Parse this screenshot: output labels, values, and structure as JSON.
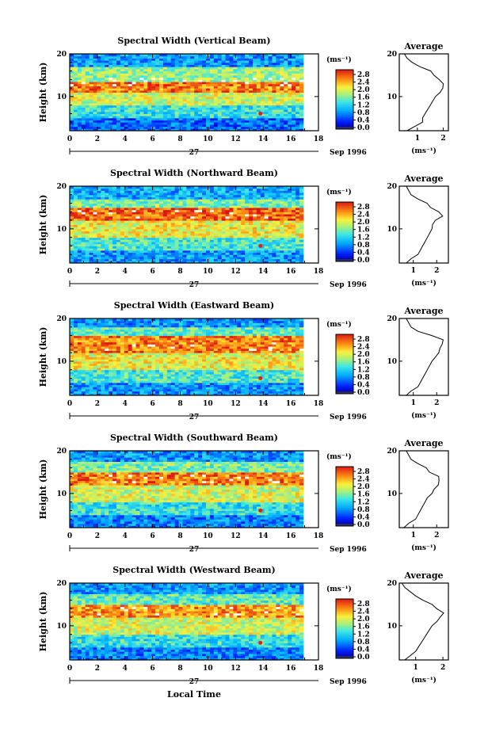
{
  "figure": {
    "xlabel": "Local Time",
    "date_day": "27",
    "date_label": "Sep 1996"
  },
  "chart_data": [
    {
      "type": "heatmap",
      "title": "Spectral Width (Vertical Beam)",
      "ylabel": "Height (km)",
      "xlim": [
        0,
        18
      ],
      "ylim": [
        2,
        20
      ],
      "xticks": [
        0,
        2,
        4,
        6,
        8,
        10,
        12,
        14,
        16,
        18
      ],
      "yticks": [
        10,
        20
      ],
      "data_extent_hours": [
        0,
        16.9
      ],
      "colorbar": {
        "unit": "(ms⁻¹)",
        "ticks": [
          "0.0",
          "0.4",
          "0.8",
          "1.2",
          "1.6",
          "2.0",
          "2.4",
          "2.8"
        ],
        "range": [
          0,
          2.8
        ]
      },
      "layers": [
        {
          "from": 2,
          "to": 5,
          "value": 0.6
        },
        {
          "from": 5,
          "to": 8,
          "value": 1.2
        },
        {
          "from": 8,
          "to": 11,
          "value": 1.8
        },
        {
          "from": 11,
          "to": 13.5,
          "value": 2.4
        },
        {
          "from": 13.5,
          "to": 17,
          "value": 1.6
        },
        {
          "from": 17,
          "to": 20,
          "value": 0.8
        }
      ],
      "average_profile": {
        "title": "Average",
        "xlabel": "(ms⁻¹)",
        "xticks": [
          1,
          2
        ],
        "xlim": [
          0.3,
          2.2
        ],
        "heights": [
          2,
          3,
          4,
          5,
          6,
          7,
          8,
          9,
          10,
          11,
          12,
          13,
          14,
          15,
          16,
          17,
          18,
          19,
          20
        ],
        "values": [
          0.6,
          0.9,
          1.2,
          1.2,
          1.3,
          1.4,
          1.5,
          1.6,
          1.7,
          1.8,
          2.0,
          2.0,
          1.9,
          1.7,
          1.4,
          1.1,
          0.8,
          0.6,
          0.5
        ]
      }
    },
    {
      "type": "heatmap",
      "title": "Spectral Width (Northward Beam)",
      "ylabel": "Height (km)",
      "xlim": [
        0,
        18
      ],
      "ylim": [
        2,
        20
      ],
      "xticks": [
        0,
        2,
        4,
        6,
        8,
        10,
        12,
        14,
        16,
        18
      ],
      "yticks": [
        10,
        20
      ],
      "data_extent_hours": [
        0,
        16.9
      ],
      "colorbar": {
        "unit": "(ms⁻¹)",
        "ticks": [
          "0.0",
          "0.4",
          "0.8",
          "1.2",
          "1.6",
          "2.0",
          "2.4",
          "2.8"
        ],
        "range": [
          0,
          2.8
        ]
      },
      "layers": [
        {
          "from": 2,
          "to": 5,
          "value": 0.8
        },
        {
          "from": 5,
          "to": 8,
          "value": 1.3
        },
        {
          "from": 8,
          "to": 12,
          "value": 1.9
        },
        {
          "from": 12,
          "to": 15,
          "value": 2.5
        },
        {
          "from": 15,
          "to": 17,
          "value": 1.5
        },
        {
          "from": 17,
          "to": 20,
          "value": 0.9
        }
      ],
      "average_profile": {
        "title": "Average",
        "xlabel": "(ms⁻¹)",
        "xticks": [
          1,
          2
        ],
        "xlim": [
          0.4,
          2.5
        ],
        "heights": [
          2,
          3,
          4,
          5,
          6,
          7,
          8,
          9,
          10,
          11,
          12,
          13,
          14,
          15,
          16,
          17,
          18,
          19,
          20
        ],
        "values": [
          0.7,
          0.9,
          1.2,
          1.3,
          1.4,
          1.5,
          1.6,
          1.7,
          1.8,
          1.9,
          2.0,
          2.3,
          2.2,
          1.8,
          1.6,
          1.2,
          0.9,
          0.8,
          0.7
        ]
      }
    },
    {
      "type": "heatmap",
      "title": "Spectral Width (Eastward Beam)",
      "ylabel": "Height (km)",
      "xlim": [
        0,
        18
      ],
      "ylim": [
        2,
        20
      ],
      "xticks": [
        0,
        2,
        4,
        6,
        8,
        10,
        12,
        14,
        16,
        18
      ],
      "yticks": [
        10,
        20
      ],
      "data_extent_hours": [
        0,
        16.9
      ],
      "colorbar": {
        "unit": "(ms⁻¹)",
        "ticks": [
          "0.0",
          "0.4",
          "0.8",
          "1.2",
          "1.6",
          "2.0",
          "2.4",
          "2.8"
        ],
        "range": [
          0,
          2.8
        ]
      },
      "layers": [
        {
          "from": 2,
          "to": 5,
          "value": 0.8
        },
        {
          "from": 5,
          "to": 8,
          "value": 1.3
        },
        {
          "from": 8,
          "to": 12,
          "value": 1.9
        },
        {
          "from": 12,
          "to": 16,
          "value": 2.4
        },
        {
          "from": 16,
          "to": 18,
          "value": 1.4
        },
        {
          "from": 18,
          "to": 20,
          "value": 0.8
        }
      ],
      "average_profile": {
        "title": "Average",
        "xlabel": "(ms⁻¹)",
        "xticks": [
          1,
          2
        ],
        "xlim": [
          0.4,
          2.5
        ],
        "heights": [
          2,
          3,
          4,
          5,
          6,
          7,
          8,
          9,
          10,
          11,
          12,
          13,
          14,
          15,
          16,
          17,
          18,
          19,
          20
        ],
        "values": [
          0.7,
          0.9,
          1.2,
          1.3,
          1.4,
          1.5,
          1.6,
          1.7,
          1.8,
          1.9,
          2.0,
          2.1,
          2.3,
          2.4,
          1.8,
          1.2,
          0.9,
          0.8,
          0.7
        ]
      }
    },
    {
      "type": "heatmap",
      "title": "Spectral Width (Southward Beam)",
      "ylabel": "Height (km)",
      "xlim": [
        0,
        18
      ],
      "ylim": [
        2,
        20
      ],
      "xticks": [
        0,
        2,
        4,
        6,
        8,
        10,
        12,
        14,
        16,
        18
      ],
      "yticks": [
        10,
        20
      ],
      "data_extent_hours": [
        0,
        16.9
      ],
      "colorbar": {
        "unit": "(ms⁻¹)",
        "ticks": [
          "0.0",
          "0.4",
          "0.8",
          "1.2",
          "1.6",
          "2.0",
          "2.4",
          "2.8"
        ],
        "range": [
          0,
          2.8
        ]
      },
      "layers": [
        {
          "from": 2,
          "to": 5,
          "value": 0.7
        },
        {
          "from": 5,
          "to": 8,
          "value": 1.2
        },
        {
          "from": 8,
          "to": 12,
          "value": 1.8
        },
        {
          "from": 12,
          "to": 15,
          "value": 2.4
        },
        {
          "from": 15,
          "to": 17.5,
          "value": 1.5
        },
        {
          "from": 17.5,
          "to": 20,
          "value": 0.8
        }
      ],
      "average_profile": {
        "title": "Average",
        "xlabel": "(ms⁻¹)",
        "xticks": [
          1,
          2
        ],
        "xlim": [
          0.4,
          2.5
        ],
        "heights": [
          2,
          3,
          4,
          5,
          6,
          7,
          8,
          9,
          10,
          11,
          12,
          13,
          14,
          15,
          16,
          17,
          18,
          19,
          20
        ],
        "values": [
          0.6,
          0.8,
          1.1,
          1.2,
          1.3,
          1.4,
          1.5,
          1.6,
          1.8,
          1.9,
          2.1,
          2.2,
          2.0,
          1.8,
          1.5,
          1.2,
          0.9,
          0.8,
          0.7
        ]
      }
    },
    {
      "type": "heatmap",
      "title": "Spectral Width (Westward Beam)",
      "ylabel": "Height (km)",
      "xlim": [
        0,
        18
      ],
      "ylim": [
        2,
        20
      ],
      "xticks": [
        0,
        2,
        4,
        6,
        8,
        10,
        12,
        14,
        16,
        18
      ],
      "yticks": [
        10,
        20
      ],
      "data_extent_hours": [
        0,
        16.9
      ],
      "colorbar": {
        "unit": "(ms⁻¹)",
        "ticks": [
          "0.0",
          "0.4",
          "0.8",
          "1.2",
          "1.6",
          "2.0",
          "2.4",
          "2.8"
        ],
        "range": [
          0,
          2.8
        ]
      },
      "layers": [
        {
          "from": 2,
          "to": 5,
          "value": 0.7
        },
        {
          "from": 5,
          "to": 8,
          "value": 1.2
        },
        {
          "from": 8,
          "to": 12,
          "value": 1.8
        },
        {
          "from": 12,
          "to": 15,
          "value": 2.3
        },
        {
          "from": 15,
          "to": 17.5,
          "value": 1.4
        },
        {
          "from": 17.5,
          "to": 20,
          "value": 0.8
        }
      ],
      "average_profile": {
        "title": "Average",
        "xlabel": "(ms⁻¹)",
        "xticks": [
          1,
          2
        ],
        "xlim": [
          0.4,
          2.2
        ],
        "heights": [
          2,
          3,
          4,
          5,
          6,
          7,
          8,
          9,
          10,
          11,
          12,
          13,
          14,
          15,
          16,
          17,
          18,
          19,
          20
        ],
        "values": [
          0.6,
          0.8,
          1.0,
          1.1,
          1.2,
          1.3,
          1.4,
          1.5,
          1.6,
          1.8,
          1.9,
          2.0,
          1.8,
          1.6,
          1.3,
          1.0,
          0.8,
          0.6,
          0.5
        ]
      }
    }
  ]
}
